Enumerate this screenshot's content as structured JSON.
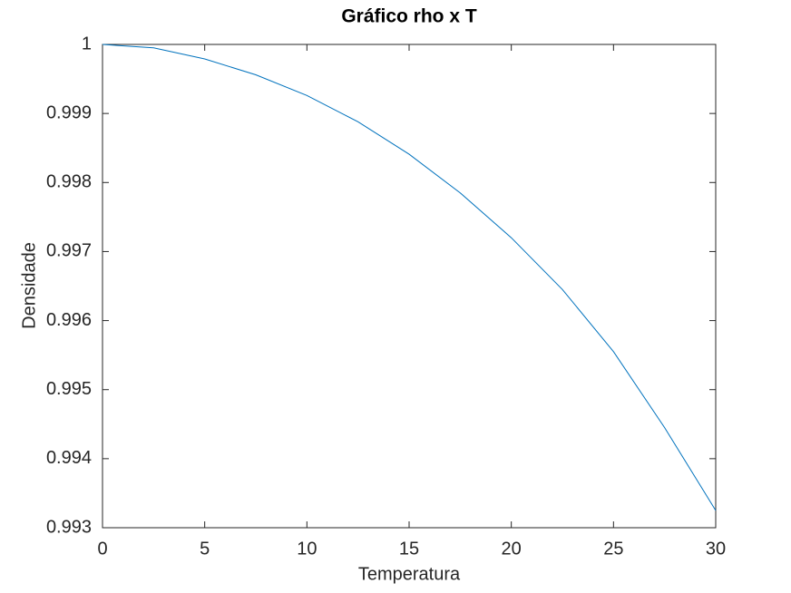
{
  "chart_data": {
    "type": "line",
    "title": "Gráfico rho x T",
    "x_label": "Temperatura",
    "y_label": "Densidade",
    "x": [
      0,
      2.5,
      5,
      7.5,
      10,
      12.5,
      15,
      17.5,
      20,
      22.5,
      25,
      27.5,
      30
    ],
    "series": [
      {
        "color": "#0072bd",
        "values": [
          1.0,
          0.99995,
          0.99979,
          0.99956,
          0.99926,
          0.99888,
          0.99841,
          0.99785,
          0.9972,
          0.99645,
          0.99555,
          0.99445,
          0.99325
        ]
      }
    ],
    "xlim": [
      0,
      30
    ],
    "xticks": [
      0,
      5,
      10,
      15,
      20,
      25,
      30
    ],
    "ylim": [
      0.993,
      1
    ],
    "yticks": [
      0.993,
      0.994,
      0.995,
      0.996,
      0.997,
      0.998,
      0.999,
      1
    ],
    "grid": false
  }
}
